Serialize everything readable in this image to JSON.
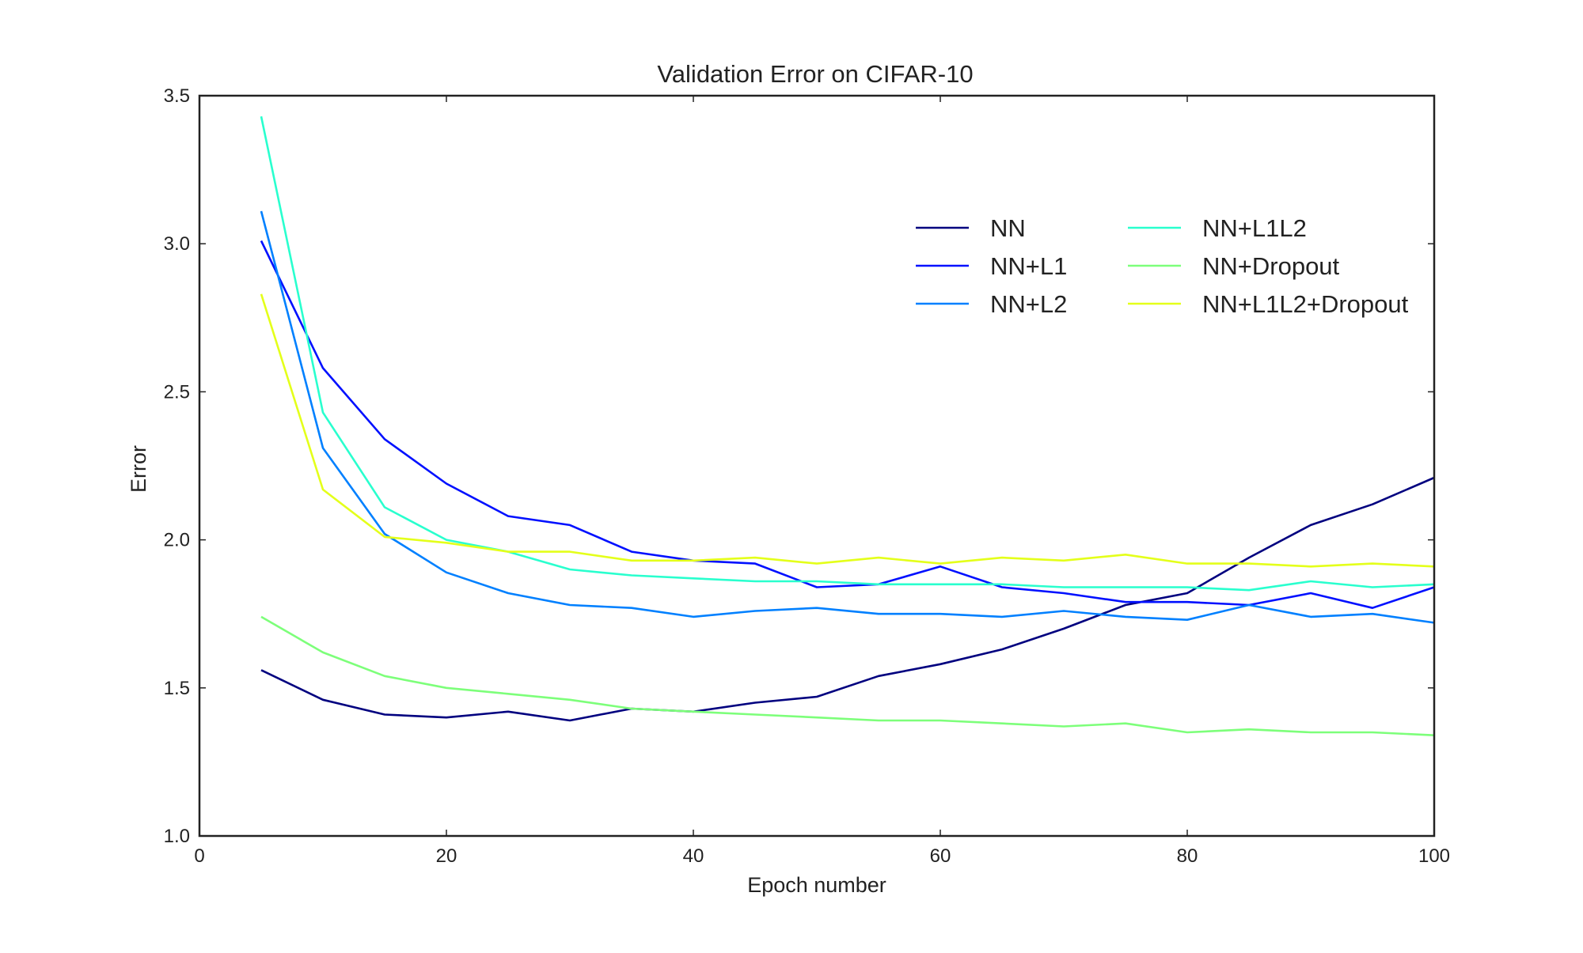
{
  "chart_data": {
    "type": "line",
    "title": "Validation Error on CIFAR-10",
    "xlabel": "Epoch number",
    "ylabel": "Error",
    "xlim": [
      0,
      100
    ],
    "ylim": [
      1.0,
      3.5
    ],
    "xticks": [
      0,
      20,
      40,
      60,
      80,
      100
    ],
    "xtick_labels": [
      "0",
      "20",
      "40",
      "60",
      "80",
      "100"
    ],
    "yticks": [
      1.0,
      1.5,
      2.0,
      2.5,
      3.0,
      3.5
    ],
    "ytick_labels": [
      "1.0",
      "1.5",
      "2.0",
      "2.5",
      "3.0",
      "3.5"
    ],
    "grid": false,
    "legend_position": "top-right",
    "legend_columns": 2,
    "x": [
      5,
      10,
      15,
      20,
      25,
      30,
      35,
      40,
      45,
      50,
      55,
      60,
      65,
      70,
      75,
      80,
      85,
      90,
      95,
      100
    ],
    "series": [
      {
        "name": "NN",
        "color": "#00007f",
        "values": [
          1.56,
          1.46,
          1.41,
          1.4,
          1.42,
          1.39,
          1.43,
          1.42,
          1.45,
          1.47,
          1.54,
          1.58,
          1.63,
          1.7,
          1.78,
          1.82,
          1.94,
          2.05,
          2.12,
          2.21
        ]
      },
      {
        "name": "NN+L1",
        "color": "#0010ff",
        "values": [
          3.01,
          2.58,
          2.34,
          2.19,
          2.08,
          2.05,
          1.96,
          1.93,
          1.92,
          1.84,
          1.85,
          1.91,
          1.84,
          1.82,
          1.79,
          1.79,
          1.78,
          1.82,
          1.77,
          1.84
        ]
      },
      {
        "name": "NN+L2",
        "color": "#0080ff",
        "values": [
          3.11,
          2.31,
          2.02,
          1.89,
          1.82,
          1.78,
          1.77,
          1.74,
          1.76,
          1.77,
          1.75,
          1.75,
          1.74,
          1.76,
          1.74,
          1.73,
          1.78,
          1.74,
          1.75,
          1.72
        ]
      },
      {
        "name": "NN+L1L2",
        "color": "#29ffce",
        "values": [
          3.43,
          2.43,
          2.11,
          2.0,
          1.96,
          1.9,
          1.88,
          1.87,
          1.86,
          1.86,
          1.85,
          1.85,
          1.85,
          1.84,
          1.84,
          1.84,
          1.83,
          1.86,
          1.84,
          1.85
        ]
      },
      {
        "name": "NN+Dropout",
        "color": "#7dff7a",
        "values": [
          1.74,
          1.62,
          1.54,
          1.5,
          1.48,
          1.46,
          1.43,
          1.42,
          1.41,
          1.4,
          1.39,
          1.39,
          1.38,
          1.37,
          1.38,
          1.35,
          1.36,
          1.35,
          1.35,
          1.34
        ]
      },
      {
        "name": "NN+L1L2+Dropout",
        "color": "#e4ff1a",
        "values": [
          2.83,
          2.17,
          2.01,
          1.99,
          1.96,
          1.96,
          1.93,
          1.93,
          1.94,
          1.92,
          1.94,
          1.92,
          1.94,
          1.93,
          1.95,
          1.92,
          1.92,
          1.91,
          1.92,
          1.91
        ]
      }
    ]
  }
}
